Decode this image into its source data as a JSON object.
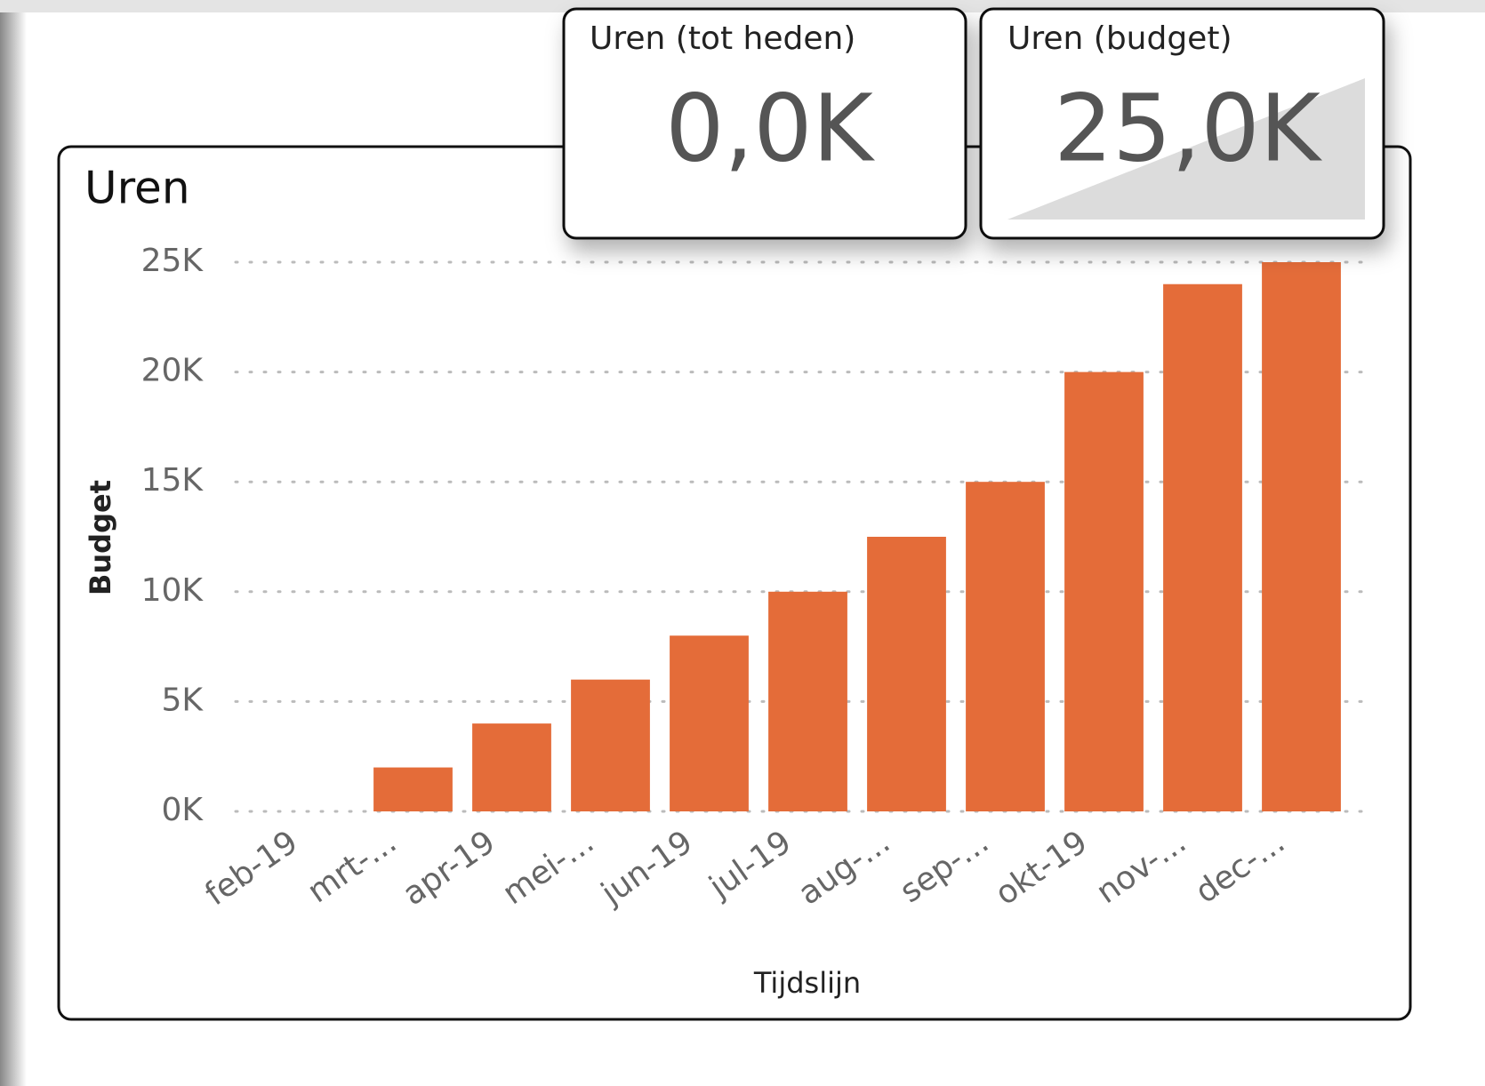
{
  "cards": [
    {
      "title": "Uren (tot heden)",
      "value": "0,0K"
    },
    {
      "title": "Uren (budget)",
      "value": "25,0K"
    }
  ],
  "chart_data": {
    "type": "bar",
    "title": "Uren",
    "x_label": "Tijdslijn",
    "y_label": "Budget",
    "categories": [
      "feb-19",
      "mrt-...",
      "apr-19",
      "mei-...",
      "jun-19",
      "jul-19",
      "aug-...",
      "sep-...",
      "okt-19",
      "nov-...",
      "dec-..."
    ],
    "values": [
      0,
      2000,
      4000,
      6000,
      8000,
      10000,
      12500,
      15000,
      20000,
      24000,
      25000
    ],
    "color": "#e46c39",
    "ylim": [
      0,
      25000
    ],
    "yticks": [
      {
        "value": 0,
        "label": "0K"
      },
      {
        "value": 5000,
        "label": "5K"
      },
      {
        "value": 10000,
        "label": "10K"
      },
      {
        "value": 15000,
        "label": "15K"
      },
      {
        "value": 20000,
        "label": "20K"
      },
      {
        "value": 25000,
        "label": "25K"
      }
    ],
    "grid": true
  }
}
